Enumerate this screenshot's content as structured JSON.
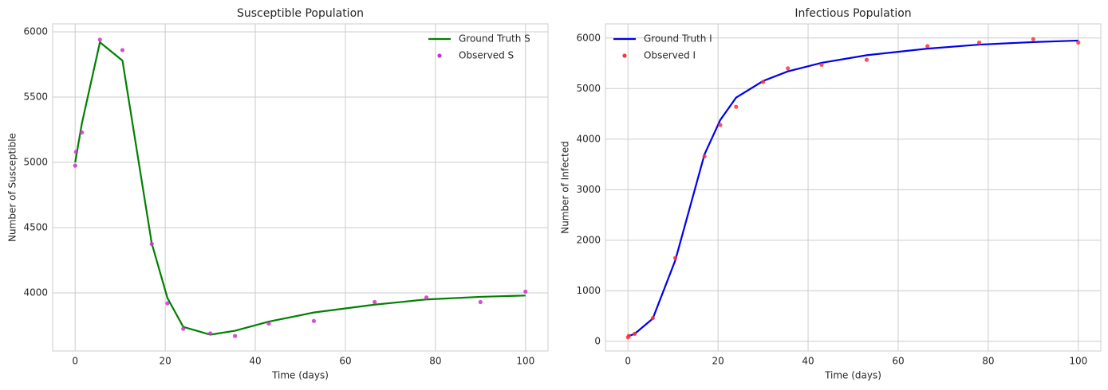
{
  "chart_data": [
    {
      "type": "line",
      "title": "Susceptible Population",
      "xlabel": "Time (days)",
      "ylabel": "Number of Susceptible",
      "xlim": [
        -5,
        105
      ],
      "xticks": [
        0,
        20,
        40,
        60,
        80,
        100
      ],
      "ylim": [
        3555,
        6061
      ],
      "yticks": [
        4000,
        4500,
        5000,
        5500,
        6000
      ],
      "grid": true,
      "legend": "upper right",
      "series": [
        {
          "name": "Ground Truth S",
          "kind": "line",
          "color": "#008000",
          "x": [
            0,
            1.5,
            5.5,
            10.5,
            17,
            20.5,
            24,
            30,
            35.5,
            43,
            53,
            66.5,
            78,
            90,
            100
          ],
          "values": [
            5000,
            5300,
            5920,
            5780,
            4380,
            3960,
            3740,
            3680,
            3710,
            3780,
            3850,
            3910,
            3950,
            3970,
            3980
          ]
        },
        {
          "name": "Observed S",
          "kind": "scatter",
          "color": "#cc33cc",
          "x": [
            0,
            0.2,
            1.5,
            5.5,
            10.5,
            17,
            20.5,
            24,
            30,
            35.5,
            43,
            53,
            66.5,
            78,
            90,
            100
          ],
          "values": [
            4975,
            5080,
            5230,
            5940,
            5860,
            4375,
            3920,
            3725,
            3690,
            3670,
            3765,
            3785,
            3930,
            3965,
            3930,
            4010
          ]
        }
      ]
    },
    {
      "type": "line",
      "title": "Infectious Population",
      "xlabel": "Time (days)",
      "ylabel": "Number of Infected",
      "xlim": [
        -5,
        105
      ],
      "xticks": [
        0,
        20,
        40,
        60,
        80,
        100
      ],
      "ylim": [
        -190,
        6280
      ],
      "yticks": [
        0,
        1000,
        2000,
        3000,
        4000,
        5000,
        6000
      ],
      "grid": true,
      "legend": "upper left",
      "series": [
        {
          "name": "Ground Truth I",
          "kind": "line",
          "color": "#0000ee",
          "x": [
            0,
            1.5,
            5.5,
            10.5,
            17,
            20.5,
            24,
            30,
            35.5,
            43,
            53,
            66.5,
            78,
            90,
            100
          ],
          "values": [
            100,
            150,
            450,
            1600,
            3700,
            4380,
            4820,
            5150,
            5340,
            5510,
            5660,
            5790,
            5870,
            5920,
            5950
          ]
        },
        {
          "name": "Observed I",
          "kind": "scatter",
          "color": "#ff3333",
          "x": [
            0,
            0.2,
            1.5,
            5.5,
            10.5,
            17,
            20.5,
            24,
            30,
            35.5,
            43,
            53,
            66.5,
            78,
            90,
            100
          ],
          "values": [
            80,
            110,
            150,
            460,
            1650,
            3660,
            4280,
            4640,
            5130,
            5400,
            5470,
            5570,
            5840,
            5910,
            5980,
            5910
          ]
        }
      ]
    }
  ]
}
